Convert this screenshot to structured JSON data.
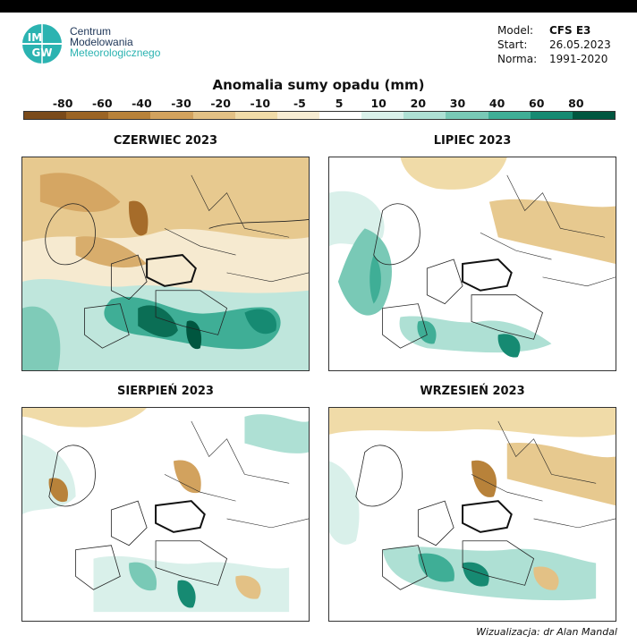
{
  "logo": {
    "mark_text_top": "IM",
    "mark_text_bottom": "GW",
    "line1": "Centrum",
    "line2": "Modelowania",
    "line3": "Meteorologicznego"
  },
  "meta": {
    "model_label": "Model:",
    "model_value": "CFS E3",
    "start_label": "Start:",
    "start_value": "26.05.2023",
    "norma_label": "Norma:",
    "norma_value": "1991-2020"
  },
  "title": "Anomalia sumy opadu (mm)",
  "legend": {
    "ticks": [
      "-80",
      "-60",
      "-40",
      "-30",
      "-20",
      "-10",
      "-5",
      "5",
      "10",
      "20",
      "30",
      "40",
      "60",
      "80"
    ],
    "colors": [
      "#7a4a1a",
      "#9b6424",
      "#b8823a",
      "#d2a25e",
      "#e3c185",
      "#f0dba8",
      "#f7ecd2",
      "#ffffff",
      "#d9f0ea",
      "#aee0d4",
      "#79c9b6",
      "#3fae96",
      "#168a72",
      "#00563f"
    ]
  },
  "panels": [
    {
      "title": "CZERWIEC 2023"
    },
    {
      "title": "LIPIEC 2023"
    },
    {
      "title": "SIERPIEŃ 2023"
    },
    {
      "title": "WRZESIEŃ 2023"
    }
  ],
  "credit": "Wizualizacja: dr Alan Mandal"
}
